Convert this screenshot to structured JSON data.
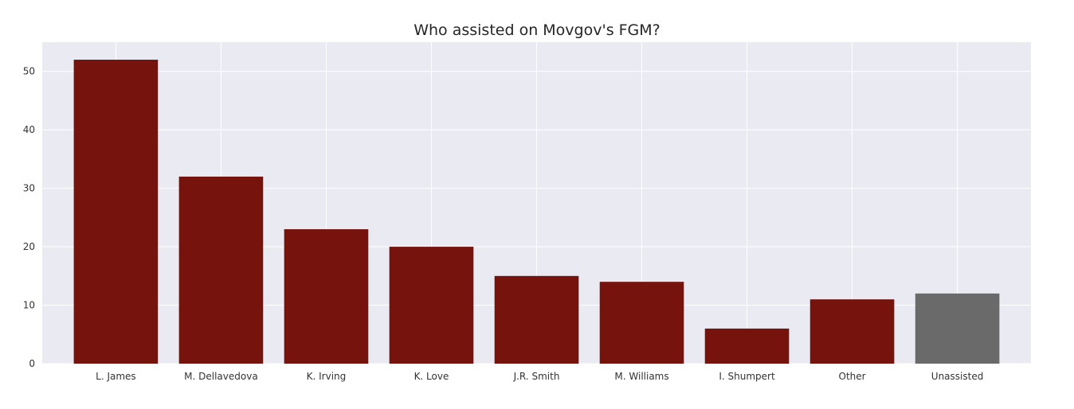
{
  "chart_data": {
    "type": "bar",
    "title": "Who assisted on Movgov's FGM?",
    "xlabel": "",
    "ylabel": "",
    "categories": [
      "L. James",
      "M. Dellavedova",
      "K. Irving",
      "K. Love",
      "J.R. Smith",
      "M. Williams",
      "I. Shumpert",
      "Other",
      "Unassisted"
    ],
    "values": [
      52,
      32,
      23,
      20,
      15,
      14,
      6,
      11,
      12
    ],
    "bar_colors": [
      "#76130D",
      "#76130D",
      "#76130D",
      "#76130D",
      "#76130D",
      "#76130D",
      "#76130D",
      "#76130D",
      "#6A6A6A"
    ],
    "ylim": [
      0,
      55
    ],
    "yticks": [
      0,
      10,
      20,
      30,
      40,
      50
    ],
    "grid": true,
    "legend": "none",
    "background": "#EAEAF2"
  }
}
